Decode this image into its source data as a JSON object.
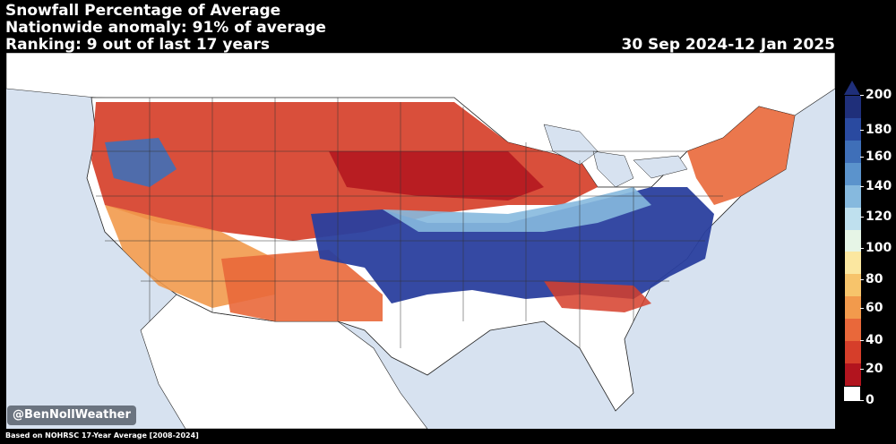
{
  "header": {
    "title": "Snowfall Percentage of Average",
    "anomaly": "Nationwide anomaly: 91% of average",
    "ranking": "Ranking: 9 out of last 17 years",
    "date_range": "30 Sep 2024-12 Jan 2025"
  },
  "credit": "@BenNollWeather",
  "footnote": "Based on NOHRSC 17-Year Average [2008-2024]",
  "colorbar": {
    "ticks": [
      "200",
      "180",
      "160",
      "140",
      "120",
      "100",
      "80",
      "60",
      "40",
      "20",
      "0"
    ],
    "colors": [
      "#1f2f7a",
      "#2a4aa0",
      "#3f6fb8",
      "#5b93cc",
      "#86b9de",
      "#bfe0ee",
      "#e6f5e6",
      "#fbe7a0",
      "#f7c46b",
      "#f29a4c",
      "#e9683a",
      "#d63e2a",
      "#b2141e",
      "#ffffff"
    ]
  }
}
